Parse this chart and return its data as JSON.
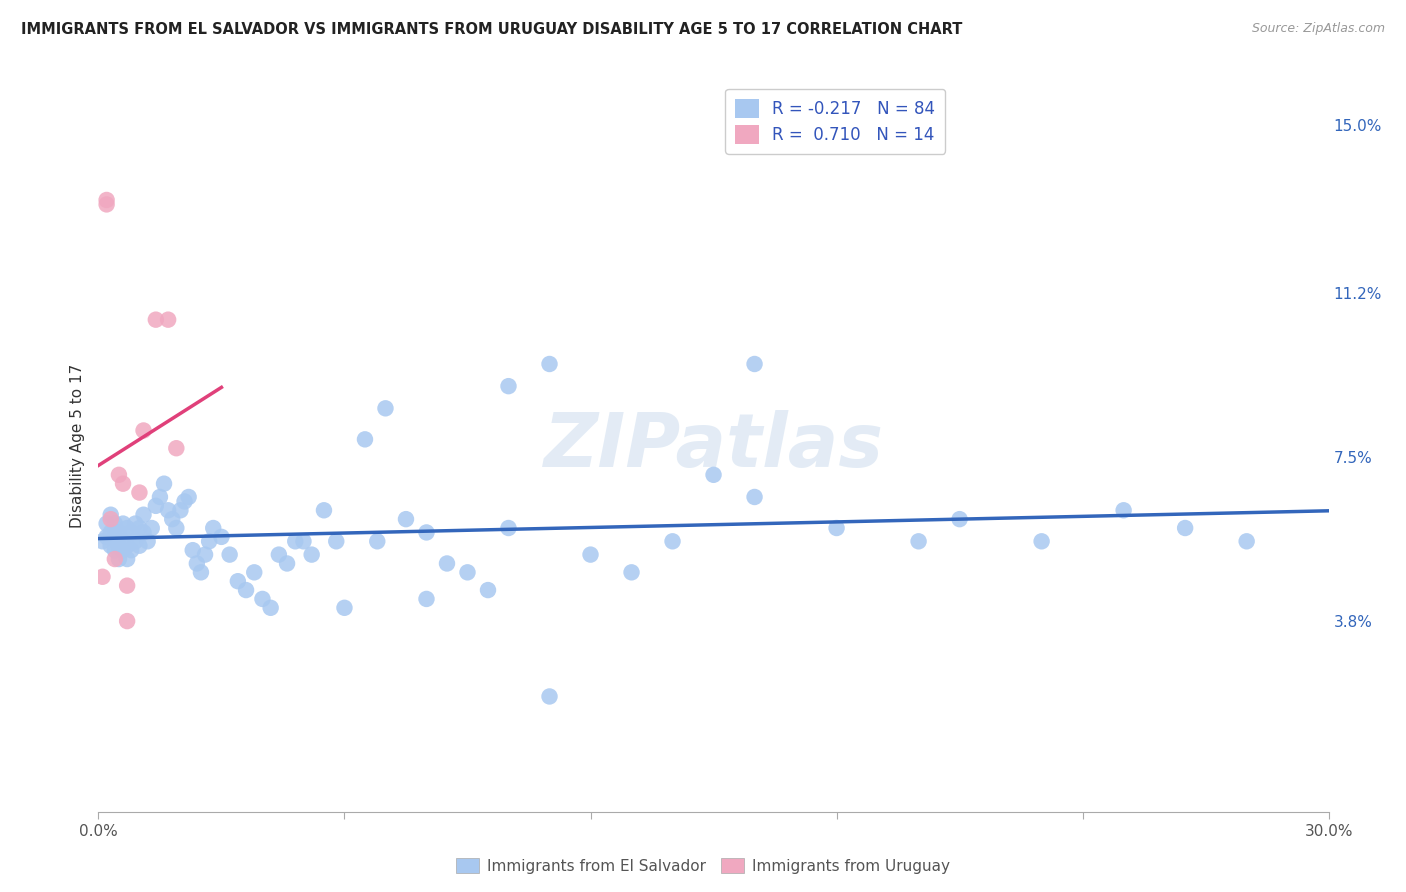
{
  "title": "IMMIGRANTS FROM EL SALVADOR VS IMMIGRANTS FROM URUGUAY DISABILITY AGE 5 TO 17 CORRELATION CHART",
  "source": "Source: ZipAtlas.com",
  "ylabel": "Disability Age 5 to 17",
  "legend_label_blue": "Immigrants from El Salvador",
  "legend_label_pink": "Immigrants from Uruguay",
  "r_blue": -0.217,
  "n_blue": 84,
  "r_pink": 0.71,
  "n_pink": 14,
  "xlim": [
    0.0,
    0.3
  ],
  "ylim": [
    -0.005,
    0.16
  ],
  "yticks_right": [
    0.038,
    0.075,
    0.112,
    0.15
  ],
  "ytick_labels_right": [
    "3.8%",
    "7.5%",
    "11.2%",
    "15.0%"
  ],
  "xticks": [
    0.0,
    0.06,
    0.12,
    0.18,
    0.24,
    0.3
  ],
  "xtick_labels": [
    "0.0%",
    "",
    "",
    "",
    "",
    "30.0%"
  ],
  "color_blue": "#a8c8f0",
  "color_pink": "#f0a8c0",
  "line_color_blue": "#3366bb",
  "line_color_pink": "#e0407a",
  "background_color": "#ffffff",
  "watermark": "ZIPatlas",
  "blue_x": [
    0.001,
    0.002,
    0.002,
    0.003,
    0.003,
    0.003,
    0.004,
    0.004,
    0.004,
    0.005,
    0.005,
    0.005,
    0.006,
    0.006,
    0.006,
    0.007,
    0.007,
    0.007,
    0.008,
    0.008,
    0.009,
    0.009,
    0.01,
    0.01,
    0.011,
    0.011,
    0.012,
    0.013,
    0.014,
    0.015,
    0.016,
    0.017,
    0.018,
    0.019,
    0.02,
    0.021,
    0.022,
    0.023,
    0.024,
    0.025,
    0.026,
    0.027,
    0.028,
    0.03,
    0.032,
    0.034,
    0.036,
    0.038,
    0.04,
    0.042,
    0.044,
    0.046,
    0.048,
    0.05,
    0.052,
    0.055,
    0.058,
    0.06,
    0.065,
    0.068,
    0.07,
    0.075,
    0.08,
    0.085,
    0.09,
    0.095,
    0.1,
    0.11,
    0.12,
    0.13,
    0.14,
    0.15,
    0.16,
    0.18,
    0.2,
    0.21,
    0.23,
    0.25,
    0.265,
    0.28,
    0.11,
    0.16,
    0.08,
    0.1
  ],
  "blue_y": [
    0.056,
    0.06,
    0.057,
    0.062,
    0.058,
    0.055,
    0.06,
    0.057,
    0.054,
    0.058,
    0.055,
    0.052,
    0.06,
    0.056,
    0.054,
    0.059,
    0.055,
    0.052,
    0.058,
    0.054,
    0.06,
    0.056,
    0.059,
    0.055,
    0.062,
    0.058,
    0.056,
    0.059,
    0.064,
    0.066,
    0.069,
    0.063,
    0.061,
    0.059,
    0.063,
    0.065,
    0.066,
    0.054,
    0.051,
    0.049,
    0.053,
    0.056,
    0.059,
    0.057,
    0.053,
    0.047,
    0.045,
    0.049,
    0.043,
    0.041,
    0.053,
    0.051,
    0.056,
    0.056,
    0.053,
    0.063,
    0.056,
    0.041,
    0.079,
    0.056,
    0.086,
    0.061,
    0.043,
    0.051,
    0.049,
    0.045,
    0.059,
    0.021,
    0.053,
    0.049,
    0.056,
    0.071,
    0.066,
    0.059,
    0.056,
    0.061,
    0.056,
    0.063,
    0.059,
    0.056,
    0.096,
    0.096,
    0.058,
    0.091
  ],
  "pink_x": [
    0.001,
    0.002,
    0.002,
    0.003,
    0.004,
    0.005,
    0.006,
    0.007,
    0.007,
    0.01,
    0.011,
    0.014,
    0.017,
    0.019
  ],
  "pink_y": [
    0.048,
    0.132,
    0.133,
    0.061,
    0.052,
    0.071,
    0.069,
    0.046,
    0.038,
    0.067,
    0.081,
    0.106,
    0.106,
    0.077
  ],
  "pink_line_x0": -0.006,
  "pink_line_x1": 0.03,
  "blue_line_x0": 0.0,
  "blue_line_x1": 0.3
}
